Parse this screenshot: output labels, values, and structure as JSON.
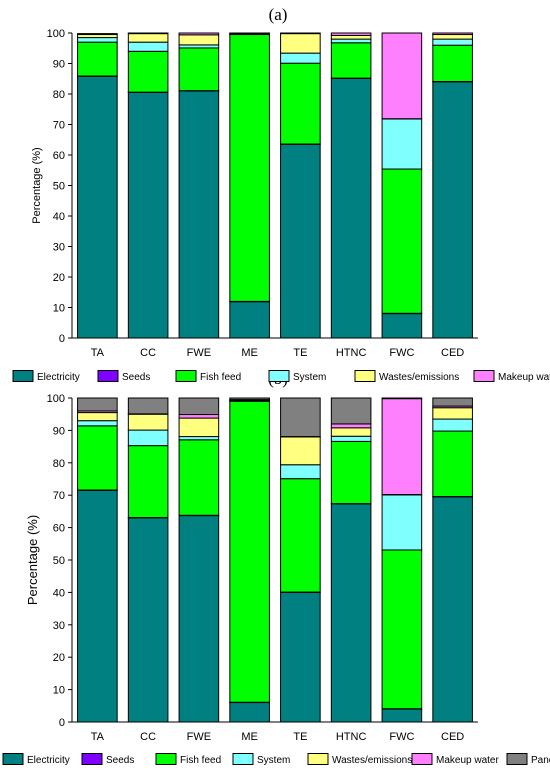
{
  "chart_data": [
    {
      "panel_label": "(a)",
      "type": "bar",
      "stacked": true,
      "categories": [
        "TA",
        "CC",
        "FWE",
        "ME",
        "TE",
        "HTNC",
        "FWC",
        "CED"
      ],
      "ylabel": "Percentage (%)",
      "ylim": [
        0,
        100
      ],
      "yticks": [
        0,
        10,
        20,
        30,
        40,
        50,
        60,
        70,
        80,
        90,
        100
      ],
      "legend_position": "bottom",
      "series": [
        {
          "name": "Electricity",
          "color": "#008080",
          "values": [
            85.8,
            80.5,
            81.0,
            11.9,
            63.5,
            85.1,
            8.0,
            84.0
          ]
        },
        {
          "name": "Seeds",
          "color": "#7f00ff",
          "values": [
            0.1,
            0.1,
            0.1,
            0.1,
            0.1,
            0.1,
            0.1,
            0.1
          ]
        },
        {
          "name": "Fish feed",
          "color": "#00ff00",
          "values": [
            11.1,
            13.4,
            14.0,
            87.5,
            26.5,
            11.6,
            47.3,
            11.9
          ]
        },
        {
          "name": "System",
          "color": "#80ffff",
          "values": [
            1.5,
            3.0,
            1.0,
            0.1,
            3.3,
            1.2,
            16.4,
            2.0
          ]
        },
        {
          "name": "Wastes/emissions",
          "color": "#ffff80",
          "values": [
            1.0,
            2.8,
            3.3,
            0.2,
            6.4,
            1.2,
            0.1,
            1.5
          ]
        },
        {
          "name": "Makeup water",
          "color": "#ff80ff",
          "values": [
            0.3,
            0.2,
            0.6,
            0.2,
            0.2,
            0.8,
            28.1,
            0.5
          ]
        }
      ]
    },
    {
      "panel_label": "(b)",
      "type": "bar",
      "stacked": true,
      "categories": [
        "TA",
        "CC",
        "FWE",
        "ME",
        "TE",
        "HTNC",
        "FWC",
        "CED"
      ],
      "ylabel": "Percentage (%)",
      "ylim": [
        0,
        100
      ],
      "yticks": [
        0,
        10,
        20,
        30,
        40,
        50,
        60,
        70,
        80,
        90,
        100
      ],
      "legend_position": "bottom",
      "series": [
        {
          "name": "Electricity",
          "color": "#008080",
          "values": [
            71.5,
            63.0,
            63.7,
            6.0,
            40.0,
            67.3,
            4.0,
            69.5
          ]
        },
        {
          "name": "Seeds",
          "color": "#7f00ff",
          "values": [
            0.1,
            0.1,
            0.1,
            0.1,
            0.1,
            0.1,
            0.1,
            0.1
          ]
        },
        {
          "name": "Fish feed",
          "color": "#00ff00",
          "values": [
            19.8,
            22.2,
            23.3,
            92.9,
            35.0,
            19.2,
            49.0,
            20.2
          ]
        },
        {
          "name": "System",
          "color": "#80ffff",
          "values": [
            1.6,
            4.8,
            1.0,
            0.2,
            4.3,
            1.6,
            17.0,
            3.7
          ]
        },
        {
          "name": "Wastes/emissions",
          "color": "#ffff80",
          "values": [
            2.5,
            4.9,
            5.7,
            0.1,
            8.6,
            2.6,
            0.1,
            3.5
          ]
        },
        {
          "name": "Makeup water",
          "color": "#ff80ff",
          "values": [
            0.5,
            0.1,
            1.1,
            0.2,
            0.1,
            1.2,
            29.6,
            0.5
          ]
        },
        {
          "name": "Panels",
          "color": "#808080",
          "values": [
            4.0,
            4.9,
            5.1,
            0.5,
            11.9,
            8.0,
            0.2,
            2.5
          ]
        }
      ]
    }
  ]
}
